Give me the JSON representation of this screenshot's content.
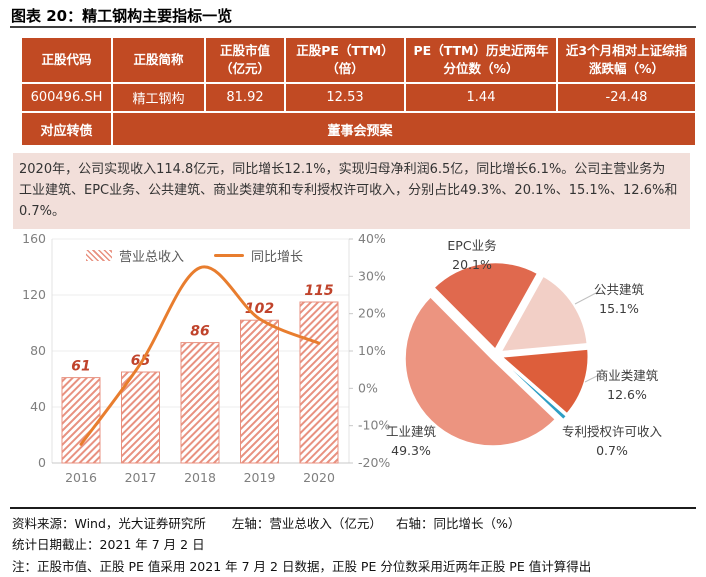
{
  "header": {
    "title": "图表 20：精工钢构主要指标一览"
  },
  "table": {
    "headers": [
      "正股代码",
      "正股简称",
      "正股市值\n（亿元）",
      "正股PE（TTM）\n（倍）",
      "PE（TTM）历史近两年\n分位数（%）",
      "近3个月相对上证综指\n涨跌幅（%）"
    ],
    "row": [
      "600496.SH",
      "精工钢构",
      "81.92",
      "12.53",
      "1.44",
      "-24.48"
    ],
    "convertible_label": "对应转债",
    "convertible_value": "董事会预案"
  },
  "summary": "2020年，公司实现收入114.8亿元，同比增长12.1%，实现归母净利润6.5亿，同比增长6.1%。公司主营业务为工业建筑、EPC业务、公共建筑、商业类建筑和专利授权许可收入，分别占比49.3%、20.1%、15.1%、12.6%和0.7%。",
  "chart_data": [
    {
      "type": "bar+line",
      "categories": [
        "2016",
        "2017",
        "2018",
        "2019",
        "2020"
      ],
      "series": [
        {
          "name": "营业总收入",
          "type": "bar",
          "axis": "left",
          "values": [
            61,
            65,
            86,
            102,
            115
          ]
        },
        {
          "name": "同比增长",
          "type": "line",
          "axis": "right",
          "values_pct": [
            -15.0,
            6.6,
            32.3,
            18.6,
            12.1
          ]
        }
      ],
      "bar_labels": [
        "61",
        "65",
        "86",
        "102",
        "115"
      ],
      "left_axis": {
        "min": 0,
        "max": 160,
        "ticks": [
          0,
          40,
          80,
          120,
          160
        ],
        "tick_labels": [
          "0",
          "40",
          "80",
          "120",
          "160"
        ]
      },
      "right_axis": {
        "min": -20,
        "max": 40,
        "ticks": [
          -20,
          -10,
          0,
          10,
          20,
          30,
          40
        ],
        "tick_labels": [
          "-20%",
          "-10%",
          "0%",
          "10%",
          "20%",
          "30%",
          "40%"
        ]
      },
      "legend_position": "top",
      "grid": true,
      "colors": {
        "bar_hatch": "#E89180",
        "line": "#E87D2E",
        "bar_label": "#C0432B"
      }
    },
    {
      "type": "pie",
      "labels": [
        "工业建筑",
        "EPC业务",
        "公共建筑",
        "商业类建筑",
        "专利授权许可收入"
      ],
      "values": [
        49.3,
        20.1,
        15.1,
        12.6,
        0.7
      ],
      "pct_labels": [
        "49.3%",
        "20.1%",
        "15.1%",
        "12.6%",
        "0.7%"
      ],
      "colors": [
        "#EC9480",
        "#E0694E",
        "#F2CFC6",
        "#DD5E3B",
        "#2E9EC4"
      ],
      "start_angle_deg": 133.7
    }
  ],
  "footer": {
    "source": "资料来源：Wind，光大证券研究所",
    "left_axis_note": "左轴：营业总收入（亿元）",
    "right_axis_note": "右轴：同比增长（%）",
    "date_note": "统计日期截止：2021 年 7 月 2 日",
    "note": "注：正股市值、正股 PE 值采用 2021 年 7 月 2 日数据，正股 PE 分位数采用近两年正股 PE 值计算得出"
  },
  "colors": {
    "table_bg": "#C14A23",
    "summary_bg": "#F2DFDA",
    "accent_orange": "#E87D2E"
  }
}
